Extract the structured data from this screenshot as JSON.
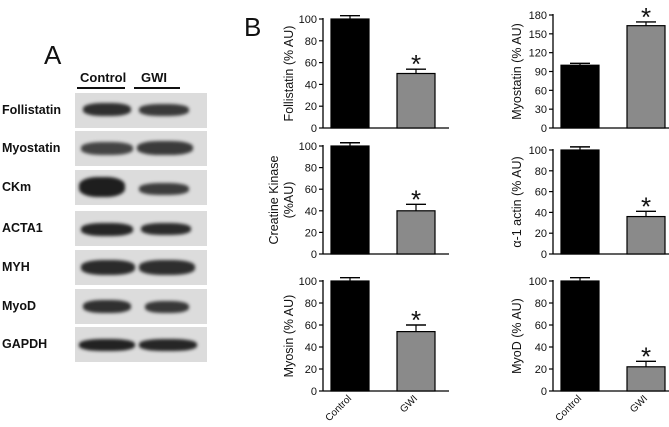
{
  "panel_a": {
    "letter": "A",
    "lanes": [
      "Control",
      "GWI"
    ],
    "blots": [
      {
        "label": "Follistatin"
      },
      {
        "label": "Myostatin"
      },
      {
        "label": "CKm"
      },
      {
        "label": "ACTA1"
      },
      {
        "label": "MYH"
      },
      {
        "label": "MyoD"
      },
      {
        "label": "GAPDH"
      }
    ]
  },
  "panel_b": {
    "letter": "B"
  },
  "colors": {
    "control": "#000000",
    "gwi": "#8a8a8a"
  },
  "chart_data": [
    {
      "type": "bar",
      "ylabel": "Follistatin (% AU)",
      "categories": [
        "Control",
        "GWI"
      ],
      "values": [
        100,
        50
      ],
      "errors": [
        3,
        4
      ],
      "ylim": [
        0,
        100
      ],
      "yticks": [
        0,
        20,
        40,
        60,
        80,
        100
      ],
      "significance": "*"
    },
    {
      "type": "bar",
      "ylabel": "Myostatin (% AU)",
      "categories": [
        "Control",
        "GWI"
      ],
      "values": [
        100,
        163
      ],
      "errors": [
        3,
        6
      ],
      "ylim": [
        0,
        180
      ],
      "yticks": [
        0,
        30,
        60,
        90,
        120,
        150,
        180
      ],
      "significance": "*"
    },
    {
      "type": "bar",
      "ylabel": "Creatine Kinase (%AU)",
      "categories": [
        "Control",
        "GWI"
      ],
      "values": [
        100,
        40
      ],
      "errors": [
        3,
        6
      ],
      "ylim": [
        0,
        100
      ],
      "yticks": [
        0,
        20,
        40,
        60,
        80,
        100
      ],
      "significance": "*"
    },
    {
      "type": "bar",
      "ylabel": "α-1 actin (% AU)",
      "categories": [
        "Control",
        "GWI"
      ],
      "values": [
        100,
        36
      ],
      "errors": [
        3,
        5
      ],
      "ylim": [
        0,
        100
      ],
      "yticks": [
        0,
        20,
        40,
        60,
        80,
        100
      ],
      "significance": "*"
    },
    {
      "type": "bar",
      "ylabel": "Myosin (% AU)",
      "categories": [
        "Control",
        "GWI"
      ],
      "values": [
        100,
        54
      ],
      "errors": [
        3,
        6
      ],
      "ylim": [
        0,
        100
      ],
      "yticks": [
        0,
        20,
        40,
        60,
        80,
        100
      ],
      "significance": "*"
    },
    {
      "type": "bar",
      "ylabel": "MyoD (% AU)",
      "categories": [
        "Control",
        "GWI"
      ],
      "values": [
        100,
        22
      ],
      "errors": [
        3,
        5
      ],
      "ylim": [
        0,
        100
      ],
      "yticks": [
        0,
        20,
        40,
        60,
        80,
        100
      ],
      "significance": "*"
    }
  ]
}
